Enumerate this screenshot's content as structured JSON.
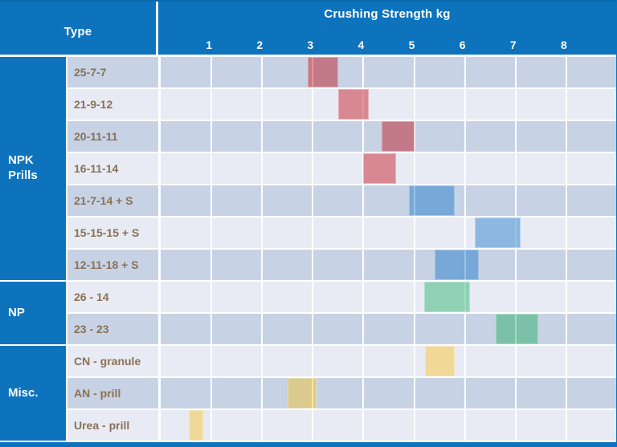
{
  "header": {
    "type_label": "Type",
    "title": "Crushing Strength kg"
  },
  "colors": {
    "header_blue": "#0d73bd",
    "header_top_edge": "#0a67aa",
    "row_dark": "#c7d2e4",
    "row_light": "#e8ebf4",
    "label_text": "#8a7156",
    "bar_red": "rgba(191,0,10,0.42)",
    "bar_blue": "rgba(0,105,195,0.40)",
    "bar_green": "rgba(0,165,75,0.38)",
    "bar_yellow": "rgba(253,188,0,0.38)"
  },
  "chart_data": {
    "type": "bar",
    "subtype": "horizontal-floating-range-bars",
    "title": "Crushing Strength kg",
    "xlabel": "Crushing Strength kg",
    "ylabel": "Type",
    "xlim": [
      0,
      9
    ],
    "x_ticks": [
      "1",
      "2",
      "3",
      "4",
      "5",
      "6",
      "7",
      "8"
    ],
    "grid": "vertical-at-integer-kg",
    "legend": "none",
    "groups": [
      {
        "label": "NPK Prills",
        "rows": 7
      },
      {
        "label": "NP",
        "rows": 2
      },
      {
        "label": "Misc.",
        "rows": 3
      }
    ],
    "bars": [
      {
        "group": "NPK Prills",
        "label": "25-7-7",
        "start_kg": 2.9,
        "end_kg": 3.5,
        "color": "red"
      },
      {
        "group": "NPK Prills",
        "label": "21-9-12",
        "start_kg": 3.5,
        "end_kg": 4.1,
        "color": "red"
      },
      {
        "group": "NPK Prills",
        "label": "20-11-11",
        "start_kg": 4.35,
        "end_kg": 5.0,
        "color": "red"
      },
      {
        "group": "NPK Prills",
        "label": "16-11-14",
        "start_kg": 4.0,
        "end_kg": 4.65,
        "color": "red"
      },
      {
        "group": "NPK Prills",
        "label": "21-7-14 + S",
        "start_kg": 4.9,
        "end_kg": 5.8,
        "color": "blue"
      },
      {
        "group": "NPK Prills",
        "label": "15-15-15 + S",
        "start_kg": 6.2,
        "end_kg": 7.1,
        "color": "blue"
      },
      {
        "group": "NPK Prills",
        "label": "12-11-18 + S",
        "start_kg": 5.4,
        "end_kg": 6.27,
        "color": "blue"
      },
      {
        "group": "NP",
        "label": "26 - 14",
        "start_kg": 5.2,
        "end_kg": 6.1,
        "color": "green"
      },
      {
        "group": "NP",
        "label": "23 - 23",
        "start_kg": 6.6,
        "end_kg": 7.45,
        "color": "green"
      },
      {
        "group": "Misc.",
        "label": "CN - granule",
        "start_kg": 5.22,
        "end_kg": 5.8,
        "color": "yellow"
      },
      {
        "group": "Misc.",
        "label": "AN - prill",
        "start_kg": 2.5,
        "end_kg": 3.08,
        "color": "yellow"
      },
      {
        "group": "Misc.",
        "label": "Urea - prill",
        "start_kg": 0.55,
        "end_kg": 0.84,
        "color": "yellow"
      }
    ]
  }
}
